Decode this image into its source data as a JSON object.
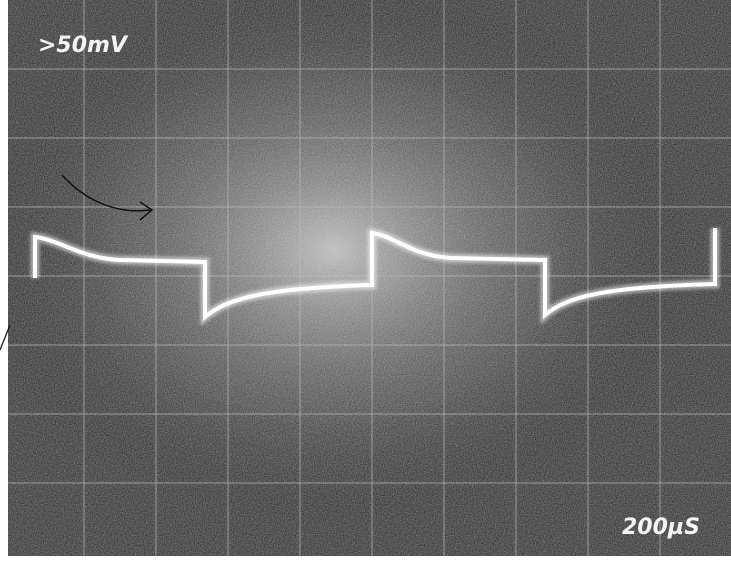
{
  "screen": {
    "volts_per_div": ">50mV",
    "time_per_div": "200µS"
  }
}
